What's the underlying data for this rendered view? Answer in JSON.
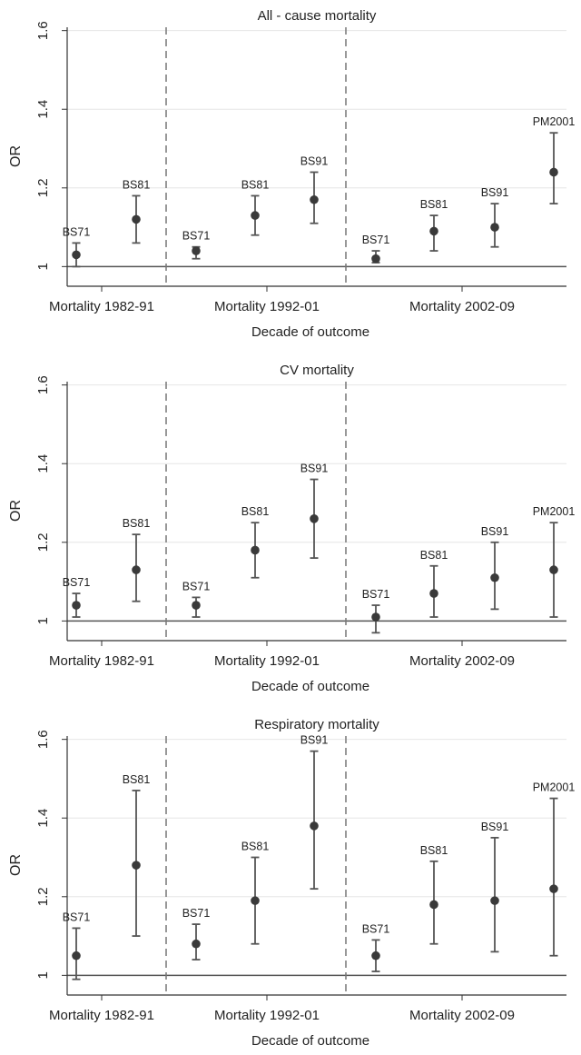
{
  "chart_data": [
    {
      "type": "scatter",
      "title": "All - cause mortality",
      "xlabel": "Decade of outcome",
      "ylabel": "OR",
      "ylim": [
        0.95,
        1.62
      ],
      "yticks": [
        "1",
        "1.2",
        "1.4",
        "1.6"
      ],
      "grid": true,
      "reference_line": 1,
      "groups": [
        "Mortality 1982-91",
        "Mortality 1992-01",
        "Mortality 2002-09"
      ],
      "points": [
        {
          "group": 0,
          "label": "BS71",
          "or": 1.03,
          "lo": 1.0,
          "hi": 1.06
        },
        {
          "group": 0,
          "label": "BS81",
          "or": 1.12,
          "lo": 1.06,
          "hi": 1.18
        },
        {
          "group": 1,
          "label": "BS71",
          "or": 1.04,
          "lo": 1.02,
          "hi": 1.05
        },
        {
          "group": 1,
          "label": "BS81",
          "or": 1.13,
          "lo": 1.08,
          "hi": 1.18
        },
        {
          "group": 1,
          "label": "BS91",
          "or": 1.17,
          "lo": 1.11,
          "hi": 1.24
        },
        {
          "group": 2,
          "label": "BS71",
          "or": 1.02,
          "lo": 1.01,
          "hi": 1.04
        },
        {
          "group": 2,
          "label": "BS81",
          "or": 1.09,
          "lo": 1.04,
          "hi": 1.13
        },
        {
          "group": 2,
          "label": "BS91",
          "or": 1.1,
          "lo": 1.05,
          "hi": 1.16
        },
        {
          "group": 2,
          "label": "PM2001",
          "or": 1.24,
          "lo": 1.16,
          "hi": 1.34
        }
      ]
    },
    {
      "type": "scatter",
      "title": "CV mortality",
      "xlabel": "Decade of outcome",
      "ylabel": "OR",
      "ylim": [
        0.95,
        1.62
      ],
      "yticks": [
        "1",
        "1.2",
        "1.4",
        "1.6"
      ],
      "grid": true,
      "reference_line": 1,
      "groups": [
        "Mortality 1982-91",
        "Mortality 1992-01",
        "Mortality 2002-09"
      ],
      "points": [
        {
          "group": 0,
          "label": "BS71",
          "or": 1.04,
          "lo": 1.01,
          "hi": 1.07
        },
        {
          "group": 0,
          "label": "BS81",
          "or": 1.13,
          "lo": 1.05,
          "hi": 1.22
        },
        {
          "group": 1,
          "label": "BS71",
          "or": 1.04,
          "lo": 1.01,
          "hi": 1.06
        },
        {
          "group": 1,
          "label": "BS81",
          "or": 1.18,
          "lo": 1.11,
          "hi": 1.25
        },
        {
          "group": 1,
          "label": "BS91",
          "or": 1.26,
          "lo": 1.16,
          "hi": 1.36
        },
        {
          "group": 2,
          "label": "BS71",
          "or": 1.01,
          "lo": 0.97,
          "hi": 1.04
        },
        {
          "group": 2,
          "label": "BS81",
          "or": 1.07,
          "lo": 1.01,
          "hi": 1.14
        },
        {
          "group": 2,
          "label": "BS91",
          "or": 1.11,
          "lo": 1.03,
          "hi": 1.2
        },
        {
          "group": 2,
          "label": "PM2001",
          "or": 1.13,
          "lo": 1.01,
          "hi": 1.25
        }
      ]
    },
    {
      "type": "scatter",
      "title": "Respiratory mortality",
      "xlabel": "Decade of outcome",
      "ylabel": "OR",
      "ylim": [
        0.95,
        1.62
      ],
      "yticks": [
        "1",
        "1.2",
        "1.4",
        "1.6"
      ],
      "grid": true,
      "reference_line": 1,
      "groups": [
        "Mortality 1982-91",
        "Mortality 1992-01",
        "Mortality 2002-09"
      ],
      "points": [
        {
          "group": 0,
          "label": "BS71",
          "or": 1.05,
          "lo": 0.99,
          "hi": 1.12
        },
        {
          "group": 0,
          "label": "BS81",
          "or": 1.28,
          "lo": 1.1,
          "hi": 1.47
        },
        {
          "group": 1,
          "label": "BS71",
          "or": 1.08,
          "lo": 1.04,
          "hi": 1.13
        },
        {
          "group": 1,
          "label": "BS81",
          "or": 1.19,
          "lo": 1.08,
          "hi": 1.3
        },
        {
          "group": 1,
          "label": "BS91",
          "or": 1.38,
          "lo": 1.22,
          "hi": 1.57
        },
        {
          "group": 2,
          "label": "BS71",
          "or": 1.05,
          "lo": 1.01,
          "hi": 1.09
        },
        {
          "group": 2,
          "label": "BS81",
          "or": 1.18,
          "lo": 1.08,
          "hi": 1.29
        },
        {
          "group": 2,
          "label": "BS91",
          "or": 1.19,
          "lo": 1.06,
          "hi": 1.35
        },
        {
          "group": 2,
          "label": "PM2001",
          "or": 1.22,
          "lo": 1.05,
          "hi": 1.45
        }
      ]
    }
  ]
}
